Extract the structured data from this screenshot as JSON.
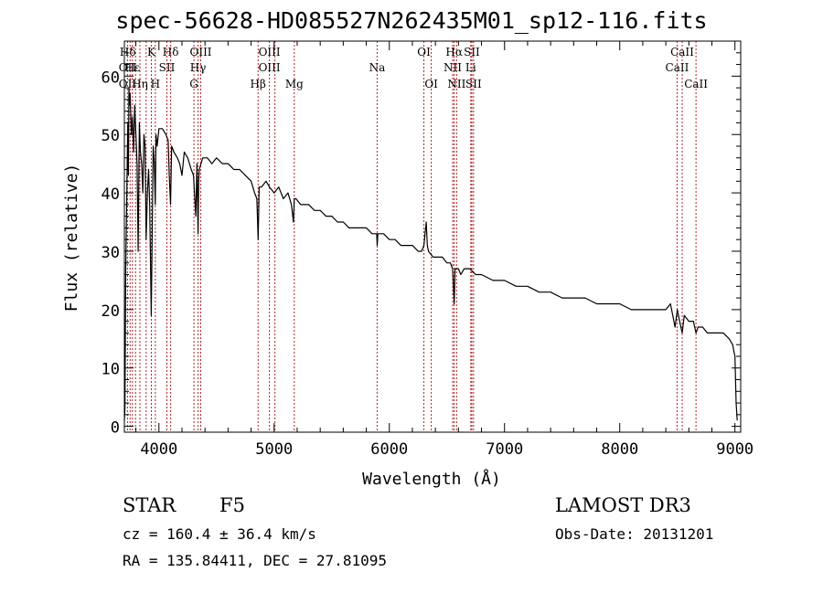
{
  "chart_data": {
    "type": "line",
    "title": "spec-56628-HD085527N262435M01_sp12-116.fits",
    "xlabel": "Wavelength (Å)",
    "ylabel": "Flux (relative)",
    "xlim": [
      3700,
      9050
    ],
    "ylim": [
      -1,
      66
    ],
    "xticks": [
      4000,
      5000,
      6000,
      7000,
      8000,
      9000
    ],
    "yticks": [
      0,
      10,
      20,
      30,
      40,
      50,
      60
    ],
    "series": [
      {
        "name": "spectrum",
        "x": [
          3700,
          3705,
          3712,
          3720,
          3725,
          3730,
          3735,
          3740,
          3745,
          3750,
          3760,
          3770,
          3780,
          3790,
          3800,
          3810,
          3820,
          3830,
          3840,
          3850,
          3860,
          3870,
          3880,
          3889,
          3900,
          3910,
          3920,
          3933,
          3950,
          3960,
          3968,
          3975,
          3985,
          4000,
          4030,
          4060,
          4080,
          4090,
          4101,
          4110,
          4130,
          4160,
          4180,
          4200,
          4220,
          4250,
          4280,
          4300,
          4320,
          4330,
          4340,
          4345,
          4350,
          4380,
          4420,
          4460,
          4500,
          4550,
          4600,
          4650,
          4700,
          4750,
          4800,
          4830,
          4850,
          4861,
          4870,
          4890,
          4930,
          4960,
          5000,
          5040,
          5080,
          5120,
          5150,
          5168,
          5175,
          5190,
          5230,
          5270,
          5300,
          5350,
          5400,
          5450,
          5500,
          5550,
          5600,
          5650,
          5700,
          5750,
          5800,
          5850,
          5890,
          5895,
          5900,
          5950,
          6000,
          6050,
          6100,
          6150,
          6200,
          6250,
          6280,
          6300,
          6310,
          6320,
          6330,
          6340,
          6380,
          6420,
          6460,
          6500,
          6530,
          6550,
          6563,
          6570,
          6580,
          6600,
          6620,
          6650,
          6700,
          6750,
          6800,
          6900,
          7000,
          7100,
          7200,
          7300,
          7400,
          7500,
          7600,
          7700,
          7800,
          7900,
          8000,
          8100,
          8200,
          8300,
          8400,
          8440,
          8460,
          8480,
          8500,
          8520,
          8542,
          8560,
          8600,
          8640,
          8662,
          8680,
          8720,
          8760,
          8800,
          8850,
          8900,
          8950,
          8980,
          8990,
          9000,
          9010,
          9020
        ],
        "values": [
          1,
          3,
          27,
          38,
          45,
          52,
          43,
          58,
          55,
          57,
          50,
          53,
          47,
          55,
          50,
          45,
          30,
          52,
          47,
          45,
          40,
          50,
          48,
          32,
          40,
          44,
          38,
          19,
          48,
          45,
          38,
          50,
          48,
          51,
          51,
          50,
          49,
          43,
          38,
          48,
          47,
          46,
          45,
          43,
          47,
          46,
          44,
          43,
          36,
          45,
          33,
          42,
          44,
          46,
          46,
          45,
          46,
          45,
          45,
          44,
          44,
          43,
          42,
          40,
          39,
          32,
          41,
          41,
          42,
          41,
          40,
          41,
          39,
          40,
          38,
          35,
          39,
          39,
          38,
          38,
          38,
          37,
          37,
          36,
          36,
          35,
          35,
          34,
          34,
          34,
          34,
          33,
          33,
          31,
          33,
          33,
          32,
          32,
          31,
          31,
          31,
          30,
          30,
          31,
          33,
          35,
          31,
          30,
          29,
          29,
          29,
          28,
          28,
          27,
          21,
          27,
          27,
          27,
          26,
          27,
          27,
          26,
          26,
          25,
          25,
          24,
          24,
          23,
          23,
          22,
          22,
          22,
          21,
          21,
          21,
          20,
          20,
          20,
          20,
          21,
          19,
          17,
          20,
          18,
          16,
          19,
          18,
          18,
          16,
          17,
          17,
          16,
          16,
          16,
          16,
          15,
          14,
          13,
          12,
          4,
          1
        ]
      }
    ],
    "line_markers": [
      {
        "label": "Hδ",
        "x": 3730,
        "row": 0
      },
      {
        "label": "OII",
        "x": 3727,
        "row": 1
      },
      {
        "label": "OII",
        "x": 3727,
        "row": 2
      },
      {
        "label": "Hε",
        "x": 3770,
        "row": 1
      },
      {
        "label": "Hη",
        "x": 3835,
        "row": 2
      },
      {
        "label": "K",
        "x": 3934,
        "row": 0
      },
      {
        "label": "H",
        "x": 3969,
        "row": 2
      },
      {
        "label": "SII",
        "x": 4069,
        "row": 1
      },
      {
        "label": "Hδ",
        "x": 4102,
        "row": 0
      },
      {
        "label": "OIII",
        "x": 4363,
        "row": 0
      },
      {
        "label": "Hγ",
        "x": 4340,
        "row": 1
      },
      {
        "label": "G",
        "x": 4304,
        "row": 2
      },
      {
        "label": "OIII",
        "x": 4959,
        "row": 0
      },
      {
        "label": "OIII",
        "x": 4959,
        "row": 1
      },
      {
        "label": "Hβ",
        "x": 4861,
        "row": 2
      },
      {
        "label": "Mg",
        "x": 5175,
        "row": 2
      },
      {
        "label": "Na",
        "x": 5894,
        "row": 1
      },
      {
        "label": "OI",
        "x": 6300,
        "row": 0
      },
      {
        "label": "OI",
        "x": 6364,
        "row": 2
      },
      {
        "label": "Hα",
        "x": 6563,
        "row": 0
      },
      {
        "label": "NII",
        "x": 6550,
        "row": 1
      },
      {
        "label": "NII",
        "x": 6584,
        "row": 2
      },
      {
        "label": "SII",
        "x": 6716,
        "row": 0
      },
      {
        "label": "Li",
        "x": 6707,
        "row": 1
      },
      {
        "label": "SII",
        "x": 6731,
        "row": 2
      },
      {
        "label": "CaII",
        "x": 8542,
        "row": 0
      },
      {
        "label": "CaII",
        "x": 8498,
        "row": 1
      },
      {
        "label": "CaII",
        "x": 8662,
        "row": 2
      }
    ],
    "marker_lines_x": [
      3727,
      3750,
      3770,
      3797,
      3835,
      3889,
      3934,
      3969,
      4069,
      4102,
      4304,
      4340,
      4363,
      4861,
      4959,
      5007,
      5175,
      5894,
      6300,
      6364,
      6550,
      6563,
      6584,
      6707,
      6716,
      6731,
      8498,
      8542,
      8662
    ]
  },
  "info": {
    "class": "STAR",
    "subclass": "F5",
    "survey": "LAMOST DR3",
    "cz": "cz = 160.4 ± 36.4 km/s",
    "obs_date": "Obs-Date: 20131201",
    "radec": "RA = 135.84411, DEC =  27.81095"
  },
  "colors": {
    "line": "#000000",
    "marker": "#b22222",
    "axes": "#000000"
  }
}
